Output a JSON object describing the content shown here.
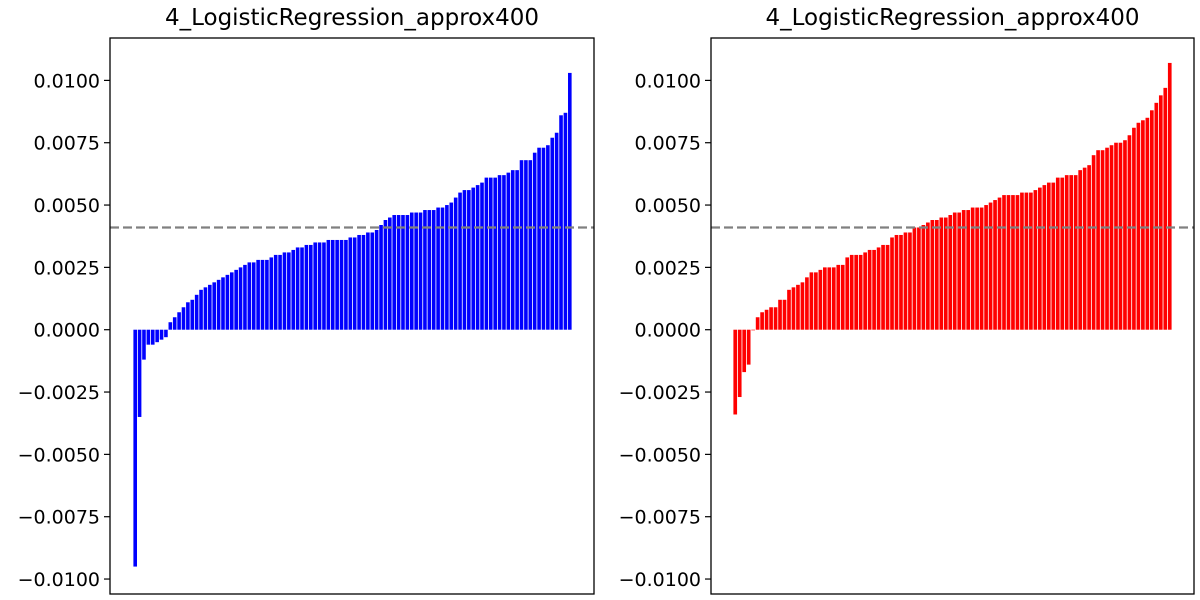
{
  "chart_data": [
    {
      "type": "bar",
      "title": "4_LogisticRegression_approx400",
      "xlabel": "",
      "ylabel": "",
      "ylim": [
        -0.0106,
        0.0117
      ],
      "yticks": [
        "0.0100",
        "0.0075",
        "0.0050",
        "0.0025",
        "0.0000",
        "−0.0025",
        "−0.0050",
        "−0.0075",
        "−0.0100"
      ],
      "ytick_values": [
        0.01,
        0.0075,
        0.005,
        0.0025,
        0,
        -0.0025,
        -0.005,
        -0.0075,
        -0.01
      ],
      "xticks_visible": false,
      "grid": false,
      "bar_color": "#0000ff",
      "reference_line": {
        "value": 0.0041,
        "style": "dashed",
        "color": "#808080"
      },
      "values": [
        -0.0095,
        -0.0035,
        -0.0012,
        -0.0006,
        -0.0006,
        -0.0005,
        -0.0004,
        -0.0003,
        0.0003,
        0.0005,
        0.0007,
        0.0009,
        0.0011,
        0.0012,
        0.0014,
        0.0016,
        0.0017,
        0.0018,
        0.0019,
        0.002,
        0.0021,
        0.0022,
        0.0023,
        0.0024,
        0.0025,
        0.0026,
        0.0027,
        0.0027,
        0.0028,
        0.0028,
        0.0028,
        0.0029,
        0.003,
        0.003,
        0.0031,
        0.0031,
        0.0032,
        0.0033,
        0.0033,
        0.0034,
        0.0034,
        0.0035,
        0.0035,
        0.0035,
        0.0036,
        0.0036,
        0.0036,
        0.0036,
        0.0036,
        0.0037,
        0.0037,
        0.0038,
        0.0038,
        0.0039,
        0.0039,
        0.004,
        0.0042,
        0.0044,
        0.0045,
        0.0046,
        0.0046,
        0.0046,
        0.0046,
        0.0047,
        0.0047,
        0.0047,
        0.0048,
        0.0048,
        0.0048,
        0.0049,
        0.0049,
        0.005,
        0.0051,
        0.0053,
        0.0055,
        0.0056,
        0.0056,
        0.0057,
        0.0058,
        0.0059,
        0.0061,
        0.0061,
        0.0061,
        0.0062,
        0.0062,
        0.0063,
        0.0064,
        0.0064,
        0.0068,
        0.0068,
        0.0068,
        0.0071,
        0.0073,
        0.0073,
        0.0074,
        0.0077,
        0.0079,
        0.0086,
        0.0087,
        0.0103
      ]
    },
    {
      "type": "bar",
      "title": "4_LogisticRegression_approx400",
      "xlabel": "",
      "ylabel": "",
      "ylim": [
        -0.0106,
        0.0117
      ],
      "yticks": [
        "0.0100",
        "0.0075",
        "0.0050",
        "0.0025",
        "0.0000",
        "−0.0025",
        "−0.0050",
        "−0.0075",
        "−0.0100"
      ],
      "ytick_values": [
        0.01,
        0.0075,
        0.005,
        0.0025,
        0,
        -0.0025,
        -0.005,
        -0.0075,
        -0.01
      ],
      "xticks_visible": false,
      "grid": false,
      "bar_color": "#ff0000",
      "reference_line": {
        "value": 0.0041,
        "style": "dashed",
        "color": "#808080"
      },
      "values": [
        -0.0034,
        -0.0027,
        -0.0017,
        -0.0014,
        0.0,
        0.0005,
        0.0007,
        0.0008,
        0.0009,
        0.0009,
        0.0012,
        0.0012,
        0.0016,
        0.0017,
        0.0018,
        0.0019,
        0.0021,
        0.0023,
        0.0023,
        0.0024,
        0.0025,
        0.0025,
        0.0025,
        0.0026,
        0.0026,
        0.0029,
        0.003,
        0.003,
        0.003,
        0.0031,
        0.0032,
        0.0032,
        0.0033,
        0.0034,
        0.0034,
        0.0037,
        0.0038,
        0.0038,
        0.0039,
        0.0039,
        0.0041,
        0.0041,
        0.0042,
        0.0043,
        0.0044,
        0.0044,
        0.0045,
        0.0045,
        0.0046,
        0.0047,
        0.0047,
        0.0048,
        0.0048,
        0.0049,
        0.0049,
        0.0049,
        0.005,
        0.0051,
        0.0052,
        0.0053,
        0.0054,
        0.0054,
        0.0054,
        0.0054,
        0.0055,
        0.0055,
        0.0055,
        0.0056,
        0.0057,
        0.0058,
        0.0059,
        0.0059,
        0.0061,
        0.0061,
        0.0062,
        0.0062,
        0.0062,
        0.0064,
        0.0065,
        0.0066,
        0.007,
        0.0072,
        0.0072,
        0.0073,
        0.0074,
        0.0075,
        0.0075,
        0.0076,
        0.0078,
        0.0081,
        0.0083,
        0.0084,
        0.0085,
        0.0088,
        0.0091,
        0.0094,
        0.0097,
        0.0107
      ]
    }
  ]
}
